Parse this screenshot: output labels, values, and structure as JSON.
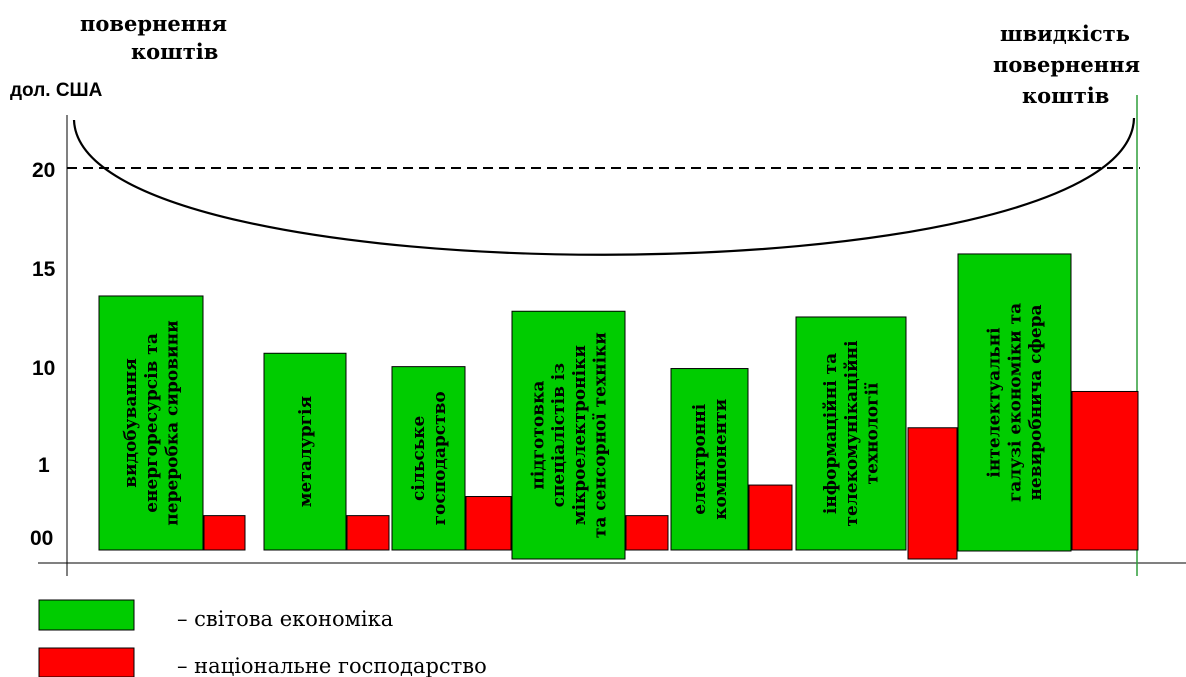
{
  "chart_data": {
    "type": "bar",
    "ylabel": "дол. США",
    "y_ticks": [
      "00",
      "1",
      "10",
      "15",
      "20"
    ],
    "ylim": [
      0,
      25
    ],
    "reference_line": {
      "y": 20,
      "style": "dashed"
    },
    "left_annotation": [
      "повернення",
      "коштів"
    ],
    "right_annotation": [
      "швидкість",
      "повернення",
      "коштів"
    ],
    "categories": [
      [
        "видобування",
        "енергоресурсів  та",
        "переробка сировини"
      ],
      [
        "металургія"
      ],
      [
        "сільське",
        "господарство"
      ],
      [
        "підготовка",
        "спеціалістів із",
        "мікроелектроніки",
        "та сенсорної техніки"
      ],
      [
        "електронні",
        "компоненти"
      ],
      [
        "інформаційні та",
        "телекомунікаційні",
        "технології"
      ],
      [
        "інтелектуальні",
        "галузі економіки та",
        "невиробнича сфера"
      ]
    ],
    "series": [
      {
        "name": "світова економіка",
        "color": "#00cc00",
        "values": [
          13.3,
          10.3,
          9.6,
          12.5,
          9.5,
          12.2,
          15.5
        ]
      },
      {
        "name": "національне господарство",
        "color": "#ff0000",
        "values": [
          1.8,
          1.8,
          2.8,
          1.8,
          3.4,
          6.4,
          8.3
        ]
      }
    ],
    "legend": {
      "position": "bottom-left",
      "items": [
        "– світова економіка",
        "– національне господарство"
      ]
    },
    "grid": false
  }
}
